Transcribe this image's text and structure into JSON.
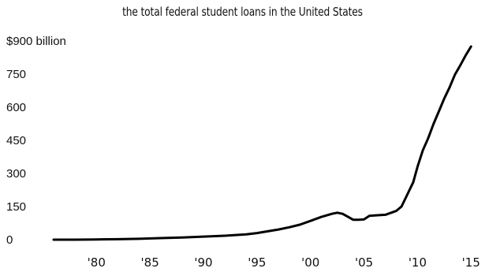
{
  "chart_data": {
    "type": "line",
    "title": "the total federal student loans in the United States",
    "xlabel": "",
    "ylabel": "",
    "xlim": [
      1976,
      2015.2
    ],
    "ylim": [
      0,
      900
    ],
    "grid": false,
    "y_ticks": [
      {
        "value": 900,
        "label": "$900 billion"
      },
      {
        "value": 750,
        "label": "750"
      },
      {
        "value": 600,
        "label": "600"
      },
      {
        "value": 450,
        "label": "450"
      },
      {
        "value": 300,
        "label": "300"
      },
      {
        "value": 150,
        "label": "150"
      },
      {
        "value": 0,
        "label": "0"
      }
    ],
    "x_ticks": [
      {
        "value": 1980,
        "label": "'80"
      },
      {
        "value": 1985,
        "label": "'85"
      },
      {
        "value": 1990,
        "label": "'90"
      },
      {
        "value": 1995,
        "label": "'95"
      },
      {
        "value": 2000,
        "label": "'00"
      },
      {
        "value": 2005,
        "label": "'05"
      },
      {
        "value": 2010,
        "label": "'10"
      },
      {
        "value": 2015,
        "label": "'15"
      }
    ],
    "series": [
      {
        "color": "#000000",
        "x": [
          1976,
          1978,
          1980,
          1982,
          1984,
          1986,
          1988,
          1990,
          1992,
          1994,
          1995,
          1996,
          1997,
          1998,
          1999,
          2000,
          2001,
          2002,
          2002.5,
          2003,
          2003.5,
          2004,
          2004.5,
          2005,
          2005.5,
          2006,
          2007,
          2008,
          2008.5,
          2009,
          2009.3,
          2009.6,
          2010,
          2010.5,
          2011,
          2011.5,
          2012,
          2012.5,
          2013,
          2013.5,
          2014,
          2014.5,
          2015
        ],
        "y": [
          0,
          0,
          1,
          2,
          4,
          7,
          10,
          14,
          18,
          24,
          30,
          38,
          46,
          56,
          68,
          85,
          103,
          117,
          122,
          117,
          104,
          90,
          90,
          92,
          108,
          110,
          113,
          130,
          150,
          200,
          230,
          260,
          330,
          405,
          460,
          525,
          582,
          640,
          690,
          748,
          790,
          835,
          875
        ]
      }
    ]
  }
}
